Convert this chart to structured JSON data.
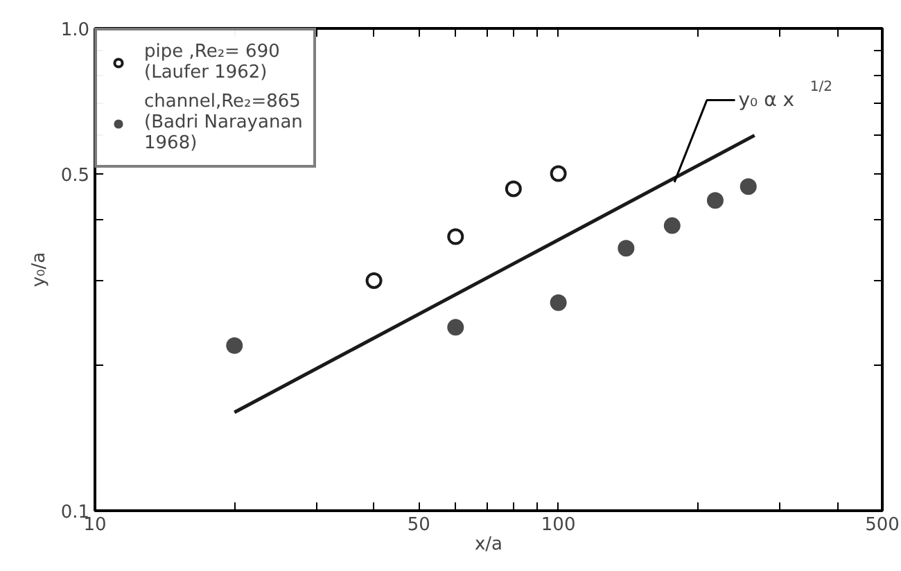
{
  "chart_data": {
    "type": "scatter",
    "xlabel": "x/a",
    "ylabel": "y₀/a",
    "log": "xy",
    "xlim": [
      10,
      500
    ],
    "ylim": [
      0.1,
      1.0
    ],
    "xticks": [
      10,
      {
        "value": 20,
        "label": null
      },
      {
        "value": 30,
        "label": null
      },
      {
        "value": 40,
        "label": null
      },
      50,
      {
        "value": 60,
        "label": null
      },
      {
        "value": 70,
        "label": null
      },
      {
        "value": 80,
        "label": null
      },
      {
        "value": 90,
        "label": null
      },
      100,
      {
        "value": 200,
        "label": null
      },
      {
        "value": 300,
        "label": null
      },
      {
        "value": 400,
        "label": null
      },
      500
    ],
    "yticks": [
      0.1,
      {
        "value": 0.2,
        "label": null
      },
      {
        "value": 0.3,
        "label": null
      },
      {
        "value": 0.4,
        "label": null
      },
      0.5,
      {
        "value": 0.6,
        "label": null
      },
      {
        "value": 0.7,
        "label": null
      },
      {
        "value": 0.8,
        "label": null
      },
      {
        "value": 0.9,
        "label": null
      },
      {
        "value": 1.0,
        "label": "1.0"
      }
    ],
    "series": [
      {
        "name": "pipe ,Re₂= 690\n(Laufer 1962)",
        "color": "#1a1a1a",
        "marker": "circle_open",
        "x": [
          40,
          60,
          80,
          100
        ],
        "values": [
          0.3,
          0.37,
          0.465,
          0.5
        ]
      },
      {
        "name": "channel,Re₂=865\n(Badri Narayanan\n1968)",
        "color": "#4a4a4a",
        "marker": "circle",
        "x": [
          20,
          60,
          100,
          140,
          176,
          218,
          257
        ],
        "values": [
          0.22,
          0.24,
          0.27,
          0.35,
          0.39,
          0.44,
          0.47
        ]
      },
      {
        "type": "line",
        "color": "#1a1a1a",
        "x": [
          20,
          265
        ],
        "values": [
          0.16,
          0.6
        ]
      }
    ],
    "annotations": [
      {
        "text": "y₀ α x$^{1/2}$",
        "x": 178,
        "y": 0.48
      }
    ],
    "legend": "top left",
    "grid": false
  }
}
